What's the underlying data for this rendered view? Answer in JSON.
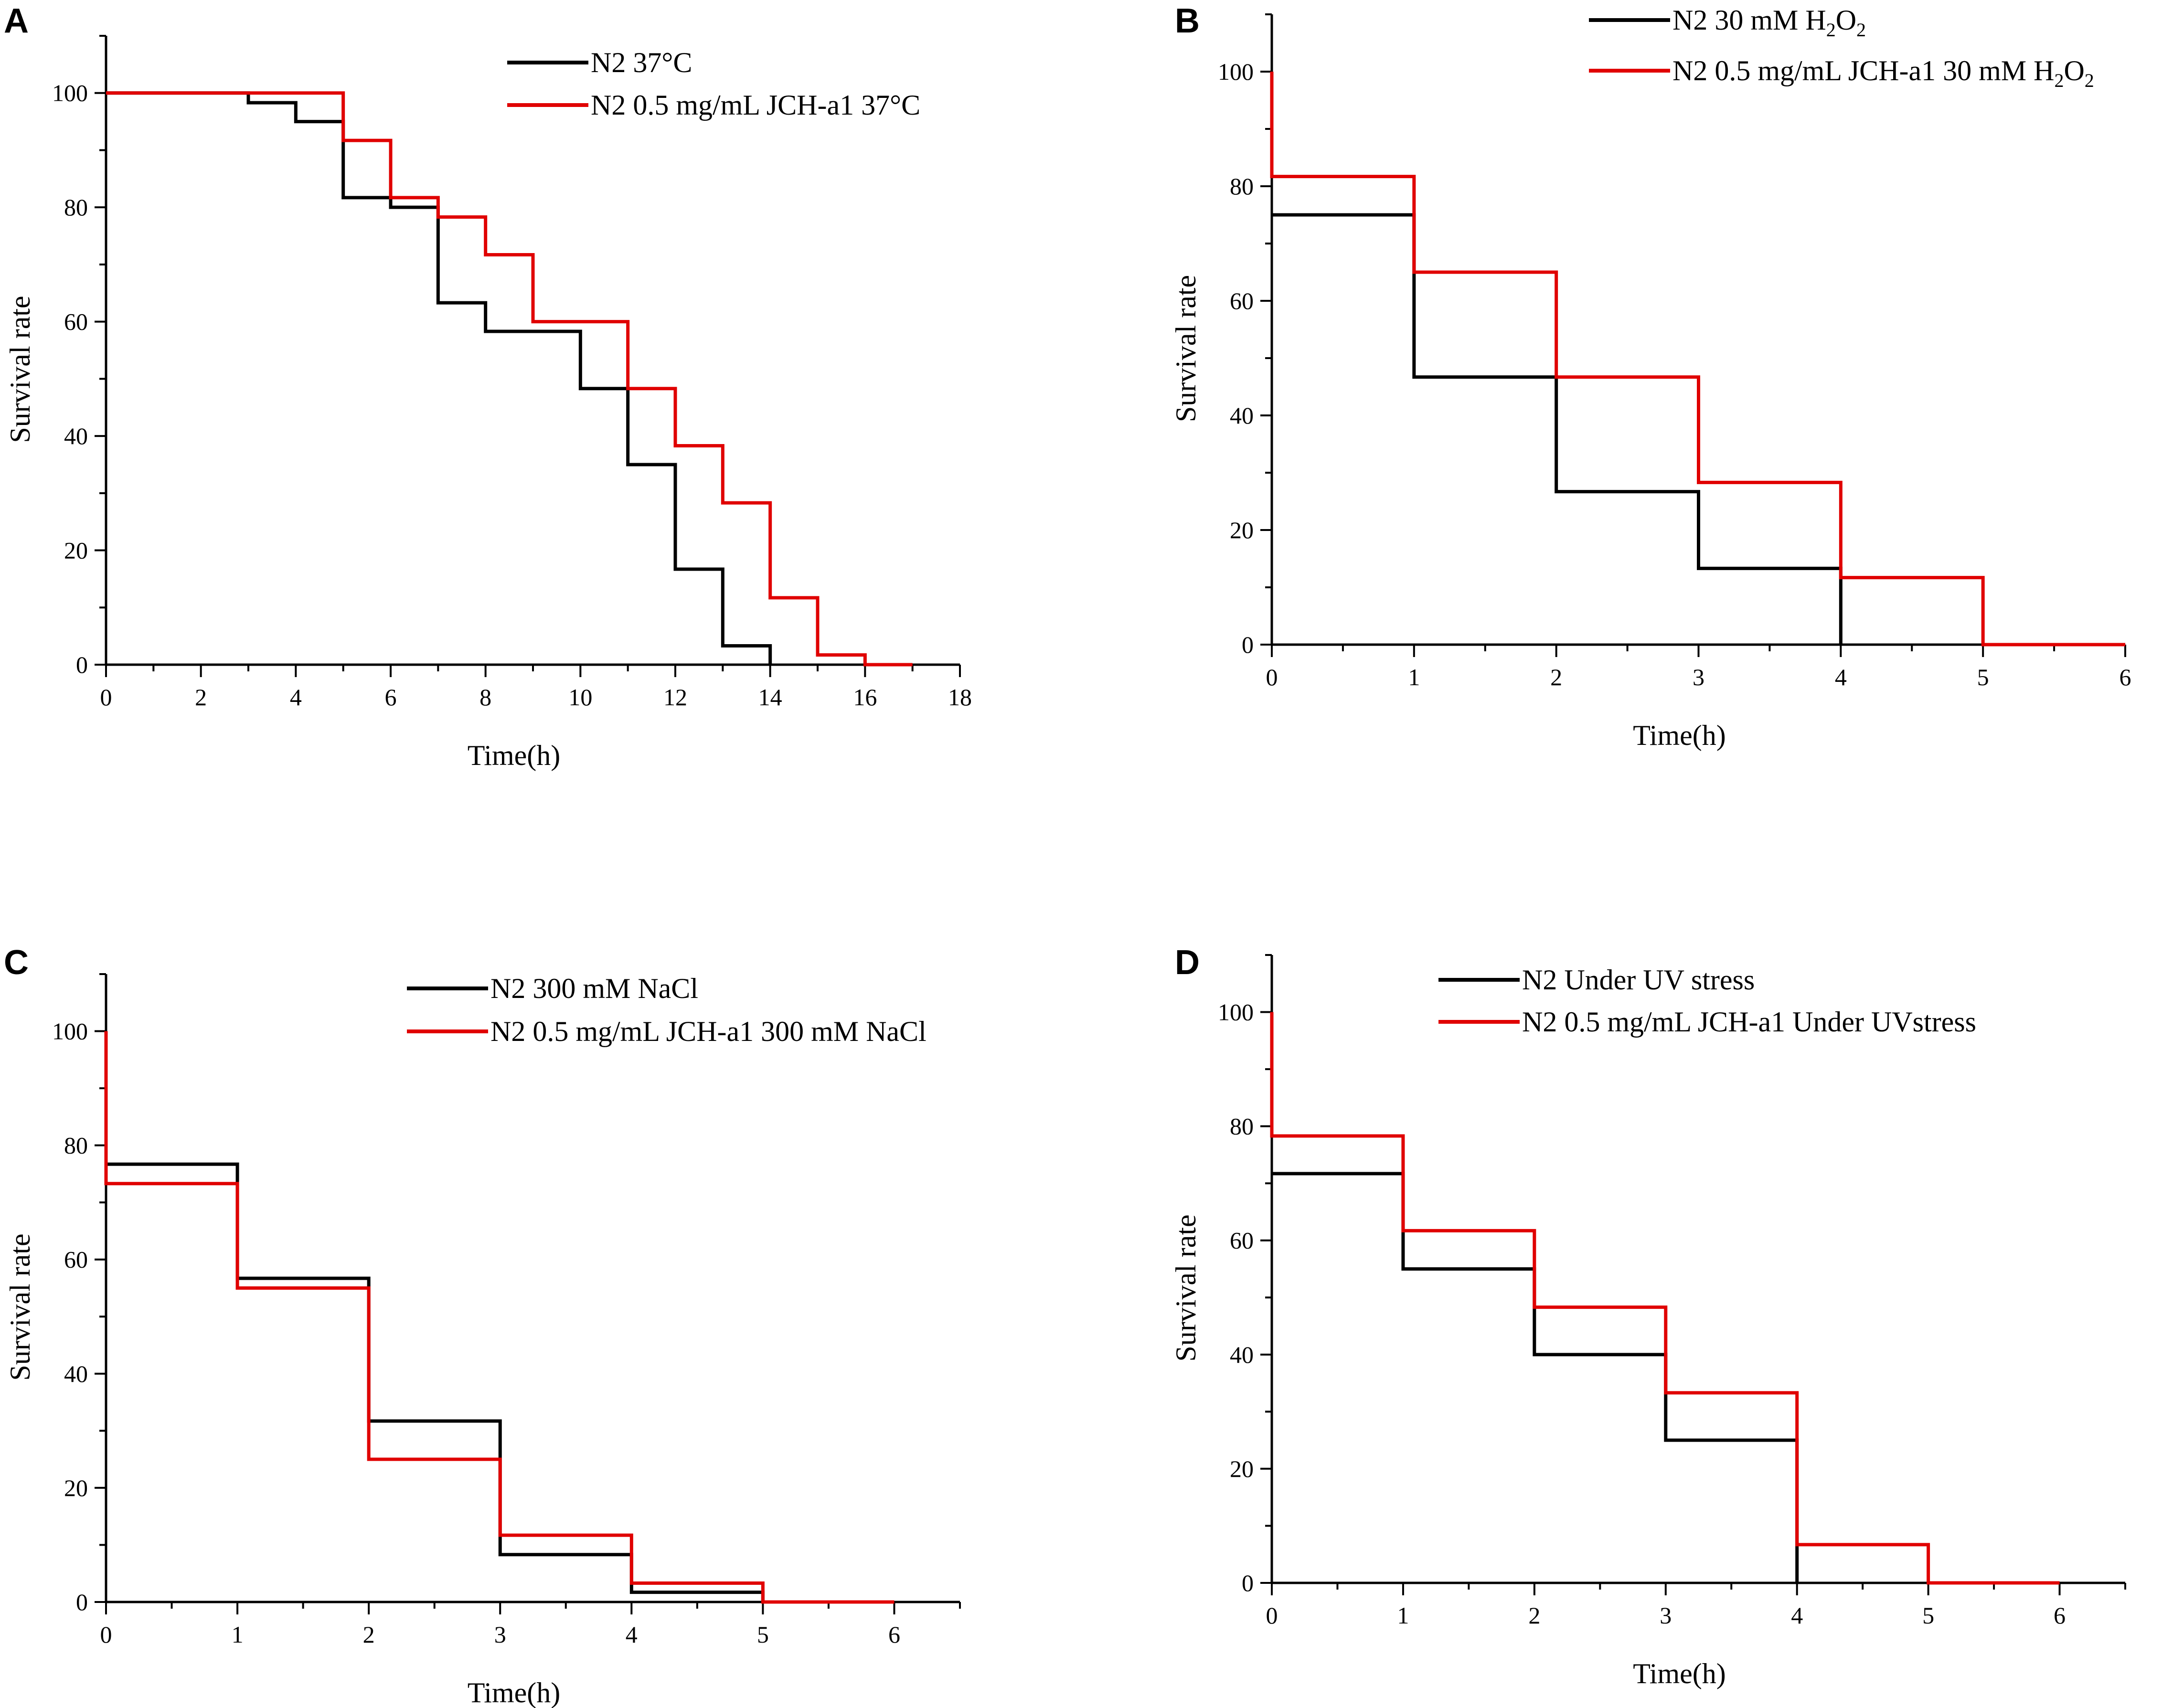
{
  "chart_data": [
    {
      "type": "line",
      "step": true,
      "panel_label": "A",
      "xlabel": "Time(h)",
      "ylabel": "Survival rate",
      "xlim": [
        0,
        18
      ],
      "ylim": [
        0,
        110
      ],
      "xticks": [
        "0",
        "2",
        "4",
        "6",
        "8",
        "10",
        "12",
        "14",
        "16",
        "18"
      ],
      "xtick_values": [
        0,
        2,
        4,
        6,
        8,
        10,
        12,
        14,
        16,
        18
      ],
      "yticks": [
        "0",
        "20",
        "40",
        "60",
        "80",
        "100"
      ],
      "ytick_values": [
        0,
        20,
        40,
        60,
        80,
        100
      ],
      "legend": [
        {
          "text": "N2 37°C"
        },
        {
          "text": "N2 0.5 mg/mL JCH-a1 37°C"
        }
      ],
      "series": [
        {
          "name": "N2 37°C",
          "color": "#000000",
          "x": [
            0,
            3,
            4,
            5,
            6,
            7,
            8,
            10,
            11,
            12,
            13,
            14
          ],
          "y": [
            100,
            98.3,
            95,
            81.7,
            80,
            63.3,
            58.3,
            48.3,
            35,
            16.7,
            3.3,
            0
          ]
        },
        {
          "name": "N2 0.5 mg/mL JCH-a1 37°C",
          "color": "#e00000",
          "x": [
            0,
            5,
            6,
            7,
            8,
            9,
            11,
            12,
            13,
            14,
            15,
            16,
            17
          ],
          "y": [
            100,
            91.7,
            81.7,
            78.3,
            71.7,
            60,
            48.3,
            38.3,
            28.3,
            11.7,
            1.7,
            0,
            0
          ]
        }
      ]
    },
    {
      "type": "line",
      "step": true,
      "panel_label": "B",
      "xlabel": "Time(h)",
      "ylabel": "Survival rate",
      "xlim": [
        0,
        6
      ],
      "ylim": [
        0,
        110
      ],
      "xticks": [
        "0",
        "1",
        "2",
        "3",
        "4",
        "5",
        "6"
      ],
      "xtick_values": [
        0,
        1,
        2,
        3,
        4,
        5,
        6
      ],
      "yticks": [
        "0",
        "20",
        "40",
        "60",
        "80",
        "100"
      ],
      "ytick_values": [
        0,
        20,
        40,
        60,
        80,
        100
      ],
      "legend": [
        {
          "text": "N2 30 mM H",
          "sub1": "2",
          "mid": "O",
          "sub2": "2"
        },
        {
          "text": "N2 0.5 mg/mL JCH-a1 30 mM H",
          "sub1": "2",
          "mid": "O",
          "sub2": "2"
        }
      ],
      "series": [
        {
          "name": "N2 30 mM H2O2",
          "color": "#000000",
          "x": [
            0,
            1,
            2,
            3,
            4
          ],
          "y": [
            75,
            46.7,
            26.7,
            13.3,
            0
          ],
          "start": 75
        },
        {
          "name": "N2 0.5 mg/mL JCH-a1 30 mM H2O2",
          "color": "#e00000",
          "x": [
            0,
            1,
            2,
            3,
            4,
            5,
            6
          ],
          "y": [
            81.7,
            65,
            46.7,
            28.3,
            11.7,
            0,
            0
          ],
          "start": 100
        }
      ]
    },
    {
      "type": "line",
      "step": true,
      "panel_label": "C",
      "xlabel": "Time(h)",
      "ylabel": "Survival rate",
      "xlim": [
        0,
        6.5
      ],
      "ylim": [
        0,
        110
      ],
      "xticks": [
        "0",
        "1",
        "2",
        "3",
        "4",
        "5",
        "6"
      ],
      "xtick_values": [
        0,
        1,
        2,
        3,
        4,
        5,
        6
      ],
      "yticks": [
        "0",
        "20",
        "40",
        "60",
        "80",
        "100"
      ],
      "ytick_values": [
        0,
        20,
        40,
        60,
        80,
        100
      ],
      "legend": [
        {
          "text": "N2 300 mM NaCl"
        },
        {
          "text": "N2 0.5 mg/mL JCH-a1 300 mM NaCl"
        }
      ],
      "series": [
        {
          "name": "N2 300 mM NaCl",
          "color": "#000000",
          "x": [
            0,
            1,
            2,
            3,
            4,
            5
          ],
          "y": [
            76.7,
            56.7,
            31.7,
            8.3,
            1.7,
            0
          ],
          "start": 76.7
        },
        {
          "name": "N2 0.5 mg/mL JCH-a1 300 mM NaCl",
          "color": "#e00000",
          "x": [
            0,
            1,
            2,
            3,
            4,
            5,
            6
          ],
          "y": [
            73.3,
            55,
            25,
            11.7,
            3.3,
            0,
            0
          ],
          "start": 100
        }
      ]
    },
    {
      "type": "line",
      "step": true,
      "panel_label": "D",
      "xlabel": "Time(h)",
      "ylabel": "Survival rate",
      "xlim": [
        0,
        6.5
      ],
      "ylim": [
        0,
        110
      ],
      "xticks": [
        "0",
        "1",
        "2",
        "3",
        "4",
        "5",
        "6"
      ],
      "xtick_values": [
        0,
        1,
        2,
        3,
        4,
        5,
        6
      ],
      "yticks": [
        "0",
        "20",
        "40",
        "60",
        "80",
        "100"
      ],
      "ytick_values": [
        0,
        20,
        40,
        60,
        80,
        100
      ],
      "legend": [
        {
          "text": "N2 Under UV stress"
        },
        {
          "text": "N2 0.5 mg/mL JCH-a1 Under UVstress"
        }
      ],
      "series": [
        {
          "name": "N2 Under UV stress",
          "color": "#000000",
          "x": [
            0,
            1,
            2,
            3,
            4
          ],
          "y": [
            71.7,
            55,
            40,
            25,
            0
          ],
          "start": 71.7
        },
        {
          "name": "N2 0.5 mg/mL JCH-a1 Under UVstress",
          "color": "#e00000",
          "x": [
            0,
            1,
            2,
            3,
            4,
            5,
            6
          ],
          "y": [
            78.3,
            61.7,
            48.3,
            33.3,
            6.7,
            0,
            0
          ],
          "start": 100
        }
      ]
    }
  ]
}
